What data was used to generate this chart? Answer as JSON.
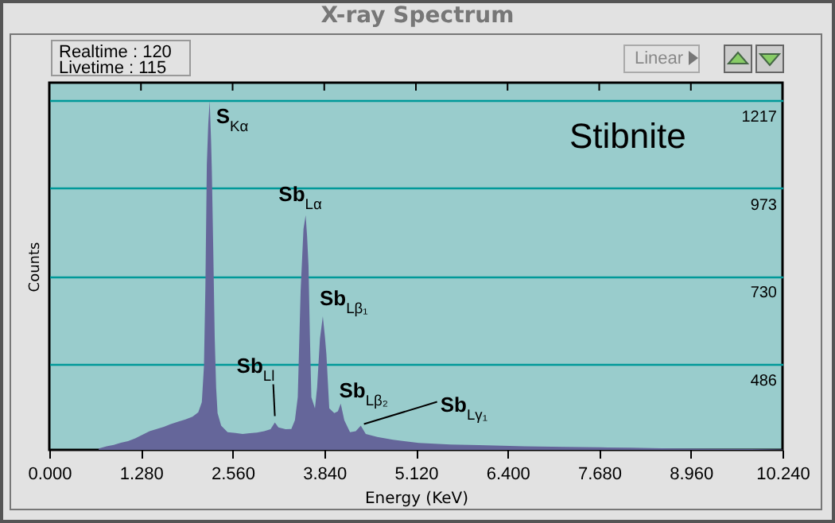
{
  "chart_data": {
    "type": "area",
    "title": "X-ray Spectrum",
    "xlabel": "Energy (KeV)",
    "ylabel": "Counts",
    "annotations": [
      "Realtime : 120",
      "Livetime : 115",
      "Linear",
      "Stibnite",
      {
        "text": "S$_{Kα}$",
        "x": 2.24,
        "y": 1215
      },
      {
        "text": "Sb$_{Lα}$",
        "x": 3.58,
        "y": 898
      },
      {
        "text": "Sb$_{Lβ₁}$",
        "x": 3.82,
        "y": 618
      },
      {
        "text": "Sb$_{Ll}$",
        "x": 3.15,
        "y": 324
      },
      {
        "text": "Sb$_{Lβ₂}$",
        "x": 4.07,
        "y": 376
      },
      {
        "text": "Sb$_{Lγ₁}$",
        "x": 4.35,
        "y": 315
      }
    ],
    "x": [
      0.69,
      0.8,
      0.9,
      1.0,
      1.1,
      1.2,
      1.3,
      1.4,
      1.5,
      1.6,
      1.69,
      1.8,
      1.9,
      2.0,
      2.08,
      2.13,
      2.16,
      2.18,
      2.2,
      2.22,
      2.24,
      2.26,
      2.27,
      2.29,
      2.31,
      2.33,
      2.35,
      2.4,
      2.49,
      2.6,
      2.7,
      2.8,
      2.9,
      3.0,
      3.09,
      3.15,
      3.2,
      3.3,
      3.38,
      3.43,
      3.47,
      3.51,
      3.55,
      3.58,
      3.6,
      3.62,
      3.64,
      3.66,
      3.71,
      3.74,
      3.78,
      3.82,
      3.85,
      3.87,
      3.91,
      3.98,
      4.03,
      4.07,
      4.12,
      4.2,
      4.28,
      4.35,
      4.42,
      4.58,
      4.8,
      5.16,
      5.6,
      6.0,
      6.64,
      7.2,
      7.7,
      8.13,
      8.7,
      9.3,
      9.8,
      10.24
    ],
    "series": [
      {
        "color": "#65669a",
        "values": [
          252,
          258,
          262,
          268,
          272,
          280,
          290,
          300,
          306,
          312,
          319,
          326,
          332,
          340,
          352,
          380,
          480,
          700,
          1039,
          1150,
          1215,
          1100,
          1021,
          800,
          560,
          420,
          350,
          315,
          297,
          295,
          292,
          294,
          296,
          300,
          305,
          324,
          310,
          305,
          306,
          330,
          394,
          688,
          860,
          898,
          840,
          758,
          560,
          394,
          363,
          420,
          556,
          618,
          560,
          512,
          363,
          350,
          355,
          376,
          330,
          297,
          300,
          315,
          292,
          284,
          276,
          267,
          263,
          261,
          258,
          256,
          255,
          254,
          252,
          251,
          250,
          249
        ]
      }
    ],
    "xlim": [
      0,
      10.24
    ],
    "xticks": [
      {
        "value": 0,
        "label": "0.000"
      },
      {
        "value": 1.28,
        "label": "1.280"
      },
      {
        "value": 2.56,
        "label": "2.560"
      },
      {
        "value": 3.84,
        "label": "3.840"
      },
      {
        "value": 5.12,
        "label": "5.120"
      },
      {
        "value": 6.4,
        "label": "6.400"
      },
      {
        "value": 7.68,
        "label": "7.680"
      },
      {
        "value": 8.96,
        "label": "8.960"
      },
      {
        "value": 10.24,
        "label": "10.240"
      }
    ],
    "ylim": [
      248,
      1265
    ],
    "yticks": [
      486,
      730,
      973,
      1217
    ],
    "grid": "y"
  }
}
